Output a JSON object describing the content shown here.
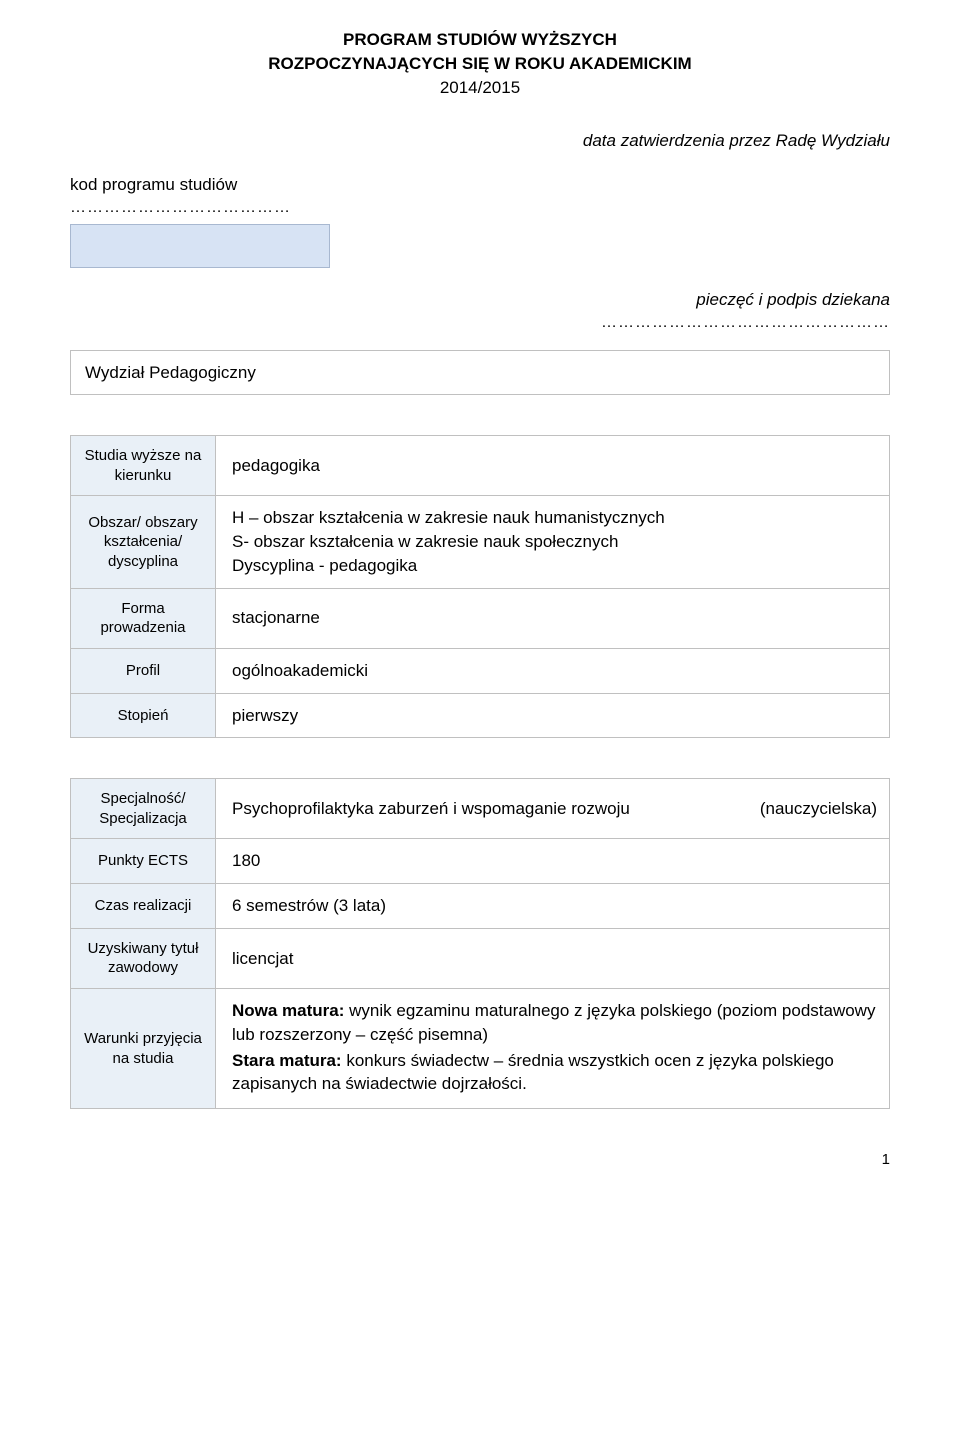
{
  "header": {
    "line1": "PROGRAM STUDIÓW WYŻSZYCH",
    "line2": "ROZPOCZYNAJĄCYCH SIĘ W ROKU AKADEMICKIM",
    "year": "2014/2015"
  },
  "approval": "data zatwierdzenia przez Radę Wydziału",
  "kod_label": "kod programu studiów",
  "dots": "…………………………………",
  "signature": "pieczęć i podpis dziekana",
  "dots_right": "……………………………………………",
  "faculty": "Wydział Pedagogiczny",
  "table1": {
    "row1_label": "Studia wyższe na kierunku",
    "row1_value": "pedagogika",
    "row2_label": "Obszar/ obszary kształcenia/ dyscyplina",
    "row2_line1": "H – obszar kształcenia w zakresie nauk humanistycznych",
    "row2_line2": "S- obszar kształcenia w zakresie nauk społecznych",
    "row2_line3": "Dyscyplina - pedagogika",
    "row3_label": "Forma prowadzenia",
    "row3_value": "stacjonarne",
    "row4_label": "Profil",
    "row4_value": "ogólnoakademicki",
    "row5_label": "Stopień",
    "row5_value": "pierwszy"
  },
  "table2": {
    "row1_label": "Specjalność/ Specjalizacja",
    "row1_value_left": "Psychoprofilaktyka zaburzeń i wspomaganie rozwoju",
    "row1_value_right": "(nauczycielska)",
    "row2_label": "Punkty ECTS",
    "row2_value": "180",
    "row3_label": "Czas realizacji",
    "row3_value": "6 semestrów (3 lata)",
    "row4_label": "Uzyskiwany tytuł zawodowy",
    "row4_value": "licencjat",
    "row5_label": "Warunki przyjęcia na studia",
    "row5_bold1": "Nowa matura:",
    "row5_text1": " wynik egzaminu maturalnego z języka polskiego (poziom podstawowy lub rozszerzony – część pisemna)",
    "row5_bold2": "Stara matura:",
    "row5_text2": " konkurs świadectw – średnia wszystkich ocen z języka polskiego zapisanych na świadectwie dojrzałości."
  },
  "page_number": "1"
}
